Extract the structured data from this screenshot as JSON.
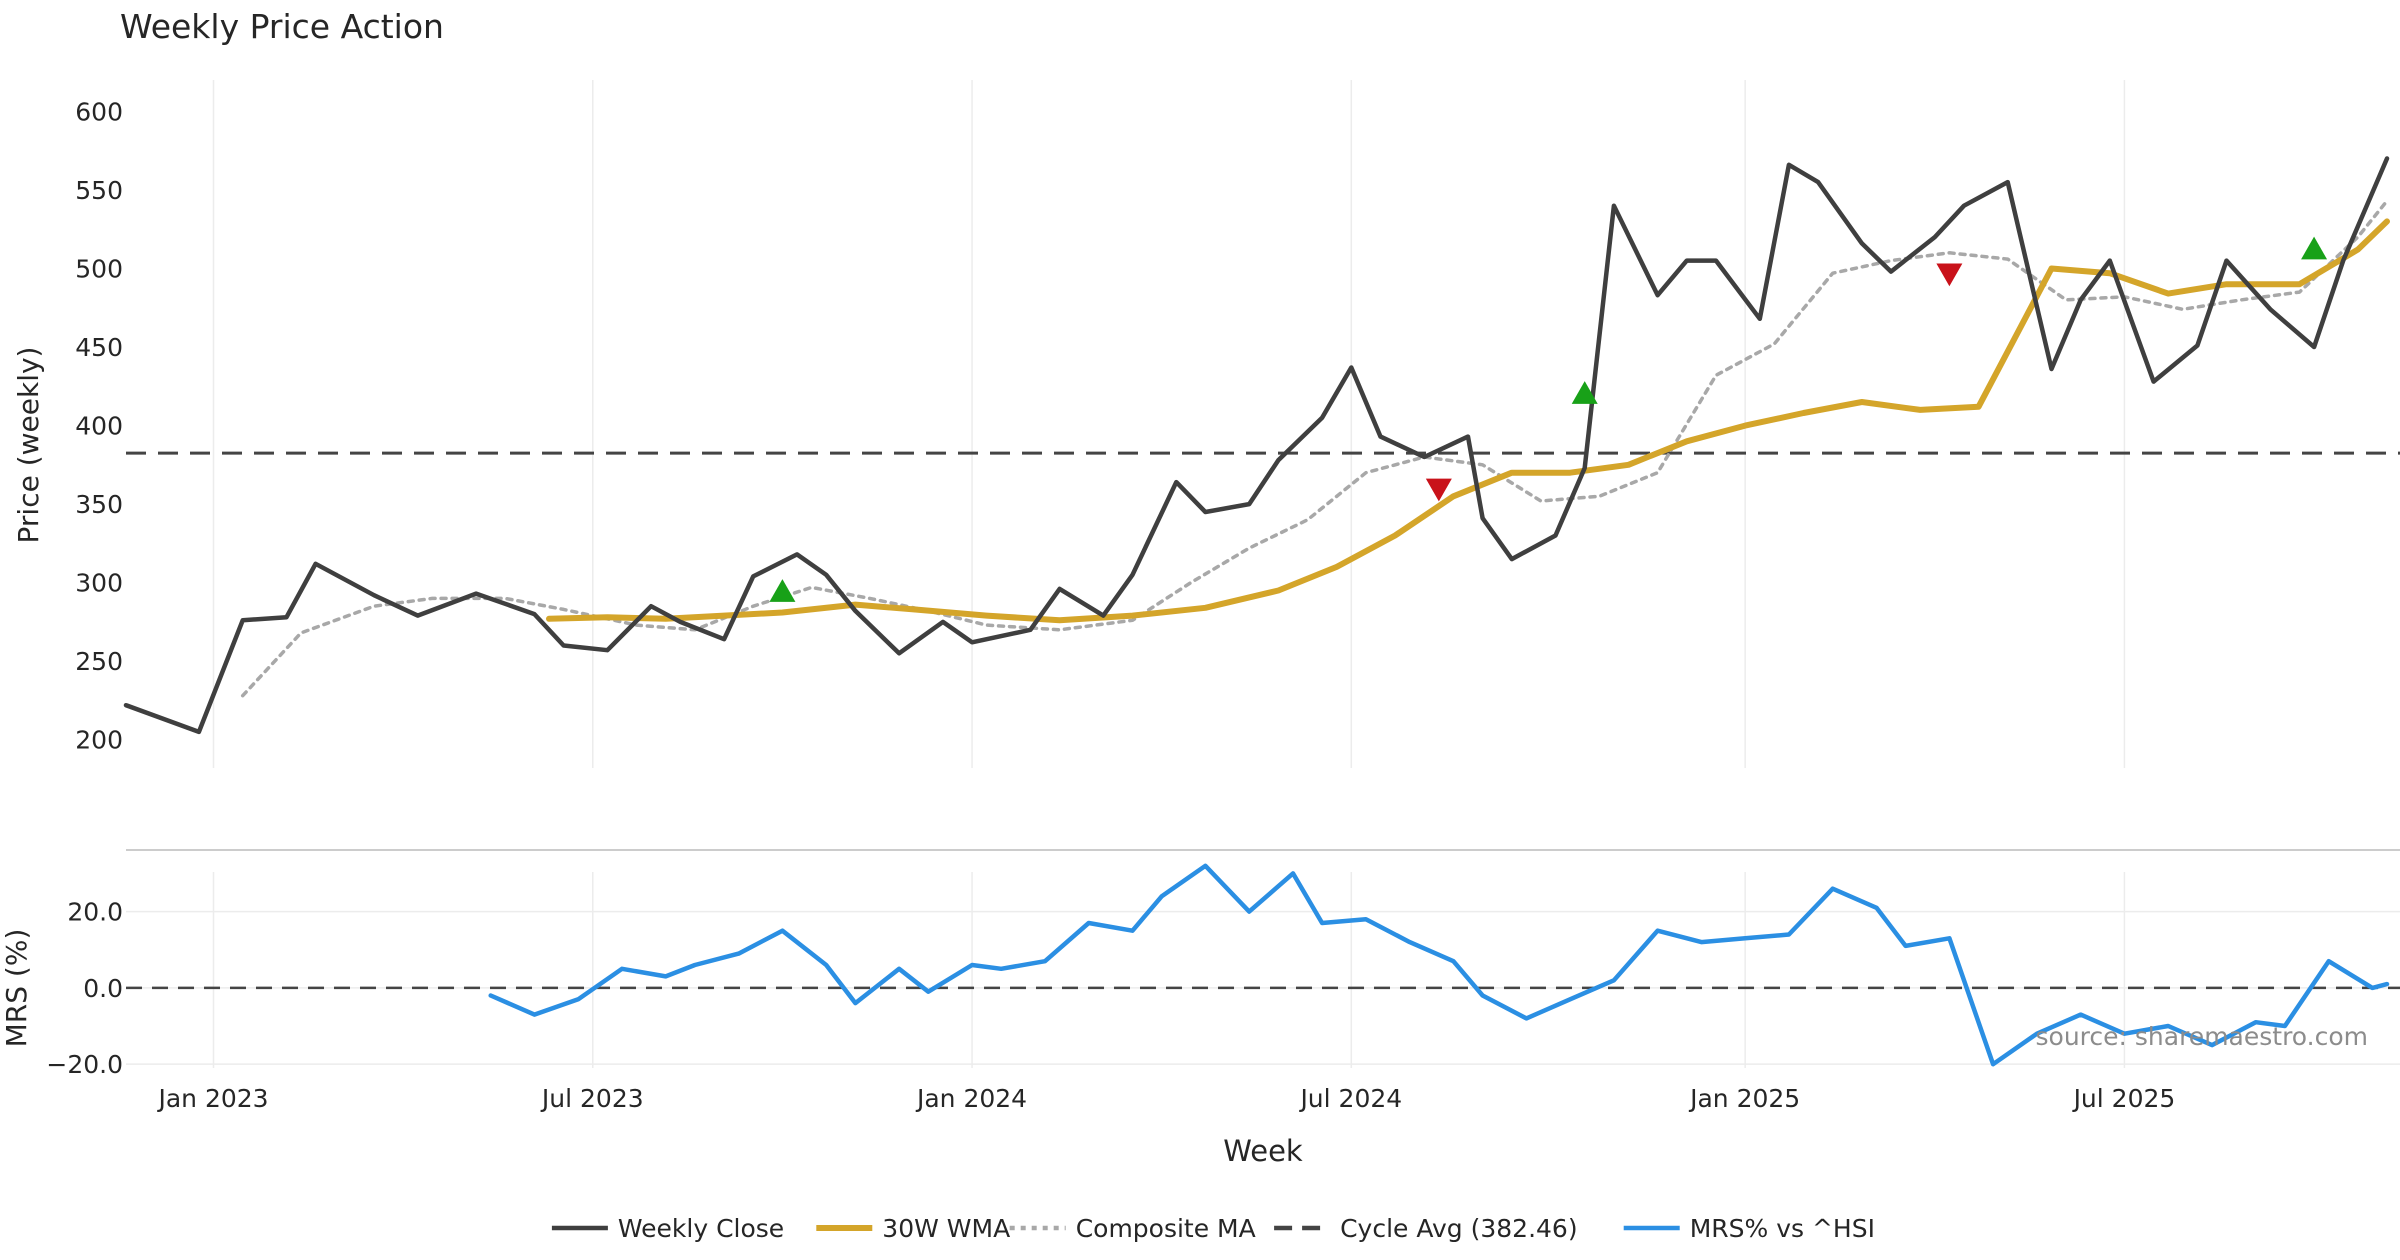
{
  "colors": {
    "close": "#3f3f3f",
    "wma": "#d4a52a",
    "composite": "#a8a8a8",
    "cycle": "#444444",
    "mrs": "#2b8fe3",
    "buy": "#18a118",
    "sell": "#c9121a",
    "grid": "#ececec",
    "text": "#262626",
    "source": "#8c8c8c"
  },
  "chart_data": [
    {
      "type": "line",
      "title": "Weekly Price Action",
      "ylabel": "Price (weekly)",
      "ylim": [
        182,
        620
      ],
      "yticks": [
        200,
        250,
        300,
        350,
        400,
        450,
        500,
        550,
        600
      ],
      "x_start": "2022-11-21",
      "x_end": "2025-11-10",
      "grid": "vertical",
      "cycle_avg": 382.46,
      "series": [
        {
          "name": "Weekly Close",
          "key": "close",
          "x": [
            "2022-11-21",
            "2022-12-26",
            "2023-01-16",
            "2023-02-06",
            "2023-02-20",
            "2023-03-20",
            "2023-04-10",
            "2023-05-08",
            "2023-06-05",
            "2023-06-19",
            "2023-07-10",
            "2023-07-31",
            "2023-08-14",
            "2023-09-04",
            "2023-09-18",
            "2023-10-09",
            "2023-10-23",
            "2023-11-06",
            "2023-11-27",
            "2023-12-18",
            "2024-01-01",
            "2024-01-29",
            "2024-02-12",
            "2024-03-04",
            "2024-03-18",
            "2024-04-08",
            "2024-04-22",
            "2024-05-13",
            "2024-05-27",
            "2024-06-17",
            "2024-07-01",
            "2024-07-15",
            "2024-08-05",
            "2024-08-26",
            "2024-09-02",
            "2024-09-16",
            "2024-10-07",
            "2024-10-21",
            "2024-11-04",
            "2024-11-25",
            "2024-12-09",
            "2024-12-23",
            "2025-01-13",
            "2025-01-27",
            "2025-02-10",
            "2025-03-03",
            "2025-03-17",
            "2025-04-07",
            "2025-04-21",
            "2025-05-12",
            "2025-06-02",
            "2025-06-16",
            "2025-06-30",
            "2025-07-21",
            "2025-08-11",
            "2025-08-25",
            "2025-09-15",
            "2025-10-06",
            "2025-10-20",
            "2025-11-10"
          ],
          "y": [
            222,
            205,
            276,
            278,
            312,
            292,
            279,
            293,
            280,
            260,
            257,
            285,
            275,
            264,
            304,
            318,
            305,
            282,
            255,
            275,
            262,
            270,
            296,
            279,
            305,
            364,
            345,
            350,
            378,
            405,
            437,
            393,
            380,
            393,
            341,
            315,
            330,
            373,
            540,
            483,
            505,
            505,
            468,
            566,
            555,
            516,
            498,
            520,
            540,
            555,
            436,
            480,
            505,
            428,
            451,
            505,
            474,
            450,
            505,
            570
          ]
        },
        {
          "name": "30W WMA",
          "key": "wma",
          "x": [
            "2023-06-12",
            "2023-07-10",
            "2023-08-07",
            "2023-09-04",
            "2023-10-02",
            "2023-11-06",
            "2023-12-04",
            "2024-01-08",
            "2024-02-12",
            "2024-03-18",
            "2024-04-22",
            "2024-05-27",
            "2024-06-24",
            "2024-07-22",
            "2024-08-19",
            "2024-09-16",
            "2024-10-14",
            "2024-11-11",
            "2024-12-09",
            "2025-01-06",
            "2025-02-03",
            "2025-03-03",
            "2025-03-31",
            "2025-04-28",
            "2025-06-02",
            "2025-06-30",
            "2025-07-28",
            "2025-08-25",
            "2025-09-29",
            "2025-10-27",
            "2025-11-10"
          ],
          "y": [
            277,
            278,
            277,
            279,
            281,
            286,
            283,
            279,
            276,
            279,
            284,
            295,
            310,
            330,
            355,
            370,
            370,
            375,
            390,
            400,
            408,
            415,
            410,
            412,
            500,
            497,
            484,
            490,
            490,
            512,
            530
          ]
        },
        {
          "name": "Composite MA",
          "key": "composite",
          "x": [
            "2023-01-16",
            "2023-02-13",
            "2023-03-20",
            "2023-04-17",
            "2023-05-22",
            "2023-06-19",
            "2023-07-24",
            "2023-08-21",
            "2023-09-18",
            "2023-10-16",
            "2023-11-13",
            "2023-12-11",
            "2024-01-08",
            "2024-02-12",
            "2024-03-18",
            "2024-04-15",
            "2024-05-13",
            "2024-06-10",
            "2024-07-08",
            "2024-08-05",
            "2024-09-02",
            "2024-09-30",
            "2024-10-28",
            "2024-11-25",
            "2024-12-23",
            "2025-01-20",
            "2025-02-17",
            "2025-03-17",
            "2025-04-14",
            "2025-05-12",
            "2025-06-09",
            "2025-07-07",
            "2025-08-04",
            "2025-09-01",
            "2025-09-29",
            "2025-10-27",
            "2025-11-10"
          ],
          "y": [
            228,
            268,
            285,
            290,
            290,
            283,
            273,
            270,
            285,
            297,
            290,
            282,
            273,
            270,
            276,
            300,
            322,
            340,
            370,
            380,
            375,
            352,
            355,
            370,
            432,
            452,
            497,
            505,
            510,
            506,
            480,
            482,
            474,
            480,
            485,
            520,
            543
          ]
        }
      ],
      "markers": [
        {
          "kind": "buy",
          "x": "2023-10-02",
          "y": 294
        },
        {
          "kind": "sell",
          "x": "2024-08-12",
          "y": 360
        },
        {
          "kind": "buy",
          "x": "2024-10-21",
          "y": 420
        },
        {
          "kind": "sell",
          "x": "2025-04-14",
          "y": 497
        },
        {
          "kind": "buy",
          "x": "2025-10-06",
          "y": 512
        }
      ]
    },
    {
      "type": "line",
      "ylabel": "MRS (%)",
      "ylim": [
        -21,
        33
      ],
      "yticks": [
        20.0,
        0.0,
        -20.0
      ],
      "ytick_labels": [
        "20.0",
        "0.0",
        "−20.0"
      ],
      "x_start": "2022-11-21",
      "x_end": "2025-11-10",
      "zero_line": 0,
      "xticks": [
        "Jan 2023",
        "Jul 2023",
        "Jan 2024",
        "Jul 2024",
        "Jan 2025",
        "Jul 2025"
      ],
      "xtick_dates": [
        "2023-01-02",
        "2023-07-03",
        "2024-01-01",
        "2024-07-01",
        "2025-01-06",
        "2025-07-07"
      ],
      "xlabel": "Week",
      "series": [
        {
          "name": "MRS% vs ^HSI",
          "key": "mrs",
          "x": [
            "2023-05-15",
            "2023-06-05",
            "2023-06-26",
            "2023-07-17",
            "2023-08-07",
            "2023-08-21",
            "2023-09-11",
            "2023-10-02",
            "2023-10-23",
            "2023-11-06",
            "2023-11-27",
            "2023-12-11",
            "2024-01-01",
            "2024-01-15",
            "2024-02-05",
            "2024-02-26",
            "2024-03-18",
            "2024-04-01",
            "2024-04-22",
            "2024-05-13",
            "2024-06-03",
            "2024-06-17",
            "2024-07-08",
            "2024-07-29",
            "2024-08-19",
            "2024-09-02",
            "2024-09-23",
            "2024-10-14",
            "2024-11-04",
            "2024-11-25",
            "2024-12-16",
            "2025-01-06",
            "2025-01-27",
            "2025-02-17",
            "2025-03-10",
            "2025-03-24",
            "2025-04-14",
            "2025-05-05",
            "2025-05-26",
            "2025-06-16",
            "2025-07-07",
            "2025-07-28",
            "2025-08-18",
            "2025-09-08",
            "2025-09-22",
            "2025-10-13",
            "2025-11-03",
            "2025-11-10"
          ],
          "y": [
            -2,
            -7,
            -3,
            5,
            3,
            6,
            9,
            15,
            6,
            -4,
            5,
            -1,
            6,
            5,
            7,
            17,
            15,
            24,
            32,
            20,
            30,
            17,
            18,
            12,
            7,
            -2,
            -8,
            -3,
            2,
            15,
            12,
            13,
            14,
            26,
            21,
            11,
            13,
            -20,
            -12,
            -7,
            -12,
            -10,
            -15,
            -9,
            -10,
            7,
            0,
            1
          ]
        }
      ]
    }
  ],
  "legend": {
    "placement": "bottom",
    "items": [
      {
        "label": "Weekly Close",
        "key": "close",
        "style": "solid"
      },
      {
        "label": "30W WMA",
        "key": "wma",
        "style": "solid"
      },
      {
        "label": "Composite MA",
        "key": "composite",
        "style": "dotted"
      },
      {
        "label": "Cycle Avg (382.46)",
        "key": "cycle",
        "style": "dashed"
      },
      {
        "label": "MRS% vs ^HSI",
        "key": "mrs",
        "style": "solid"
      }
    ]
  },
  "source_text": "source: sharemaestro.com"
}
